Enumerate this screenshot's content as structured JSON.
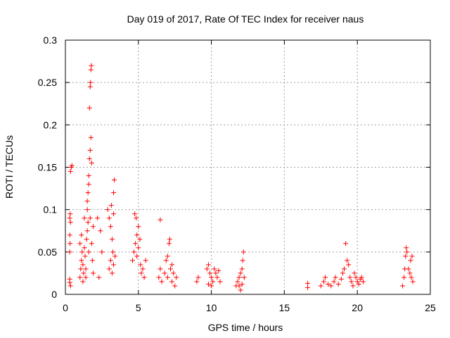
{
  "chart_data": {
    "type": "scatter",
    "title": "Day 019 of 2017, Rate Of TEC Index for receiver naus",
    "xlabel": "GPS time / hours",
    "ylabel": "ROTI / TECUs",
    "xlim": [
      0,
      25
    ],
    "ylim": [
      0,
      0.3
    ],
    "x_ticks": [
      "0",
      "5",
      "10",
      "15",
      "20",
      "25"
    ],
    "y_ticks": [
      "0",
      "0.05",
      "0.1",
      "0.15",
      "0.2",
      "0.25",
      "0.3"
    ],
    "grid": true,
    "marker": "+",
    "marker_color": "#ff0000",
    "series": [
      {
        "points": [
          [
            0.3,
            0.014
          ],
          [
            0.3,
            0.018
          ],
          [
            0.35,
            0.01
          ],
          [
            0.3,
            0.05
          ],
          [
            0.32,
            0.06
          ],
          [
            0.3,
            0.07
          ],
          [
            0.35,
            0.085
          ],
          [
            0.3,
            0.09
          ],
          [
            0.33,
            0.095
          ],
          [
            0.35,
            0.145
          ],
          [
            0.4,
            0.15
          ],
          [
            0.45,
            0.152
          ],
          [
            1.0,
            0.02
          ],
          [
            1.05,
            0.03
          ],
          [
            1.1,
            0.04
          ],
          [
            1.15,
            0.05
          ],
          [
            1.0,
            0.06
          ],
          [
            1.2,
            0.035
          ],
          [
            1.25,
            0.025
          ],
          [
            1.1,
            0.07
          ],
          [
            1.3,
            0.055
          ],
          [
            1.35,
            0.045
          ],
          [
            1.4,
            0.03
          ],
          [
            1.2,
            0.015
          ],
          [
            1.45,
            0.065
          ],
          [
            1.5,
            0.075
          ],
          [
            1.55,
            0.085
          ],
          [
            1.5,
            0.1
          ],
          [
            1.55,
            0.12
          ],
          [
            1.6,
            0.14
          ],
          [
            1.65,
            0.16
          ],
          [
            1.7,
            0.17
          ],
          [
            1.75,
            0.185
          ],
          [
            1.6,
            0.13
          ],
          [
            1.5,
            0.11
          ],
          [
            1.65,
            0.22
          ],
          [
            1.7,
            0.245
          ],
          [
            1.72,
            0.25
          ],
          [
            1.75,
            0.265
          ],
          [
            1.78,
            0.27
          ],
          [
            1.8,
            0.155
          ],
          [
            1.7,
            0.09
          ],
          [
            1.8,
            0.06
          ],
          [
            1.85,
            0.04
          ],
          [
            1.9,
            0.025
          ],
          [
            1.6,
            0.05
          ],
          [
            1.4,
            0.02
          ],
          [
            1.3,
            0.09
          ],
          [
            1.9,
            0.08
          ],
          [
            2.3,
            0.02
          ],
          [
            2.2,
            0.09
          ],
          [
            2.4,
            0.075
          ],
          [
            2.5,
            0.05
          ],
          [
            2.9,
            0.1
          ],
          [
            3.0,
            0.09
          ],
          [
            3.1,
            0.08
          ],
          [
            3.2,
            0.065
          ],
          [
            3.25,
            0.05
          ],
          [
            3.3,
            0.12
          ],
          [
            3.35,
            0.135
          ],
          [
            3.0,
            0.03
          ],
          [
            3.1,
            0.04
          ],
          [
            3.2,
            0.025
          ],
          [
            3.3,
            0.035
          ],
          [
            3.4,
            0.045
          ],
          [
            3.15,
            0.105
          ],
          [
            3.3,
            0.095
          ],
          [
            4.6,
            0.04
          ],
          [
            4.7,
            0.05
          ],
          [
            4.8,
            0.06
          ],
          [
            4.9,
            0.07
          ],
          [
            4.75,
            0.095
          ],
          [
            4.85,
            0.09
          ],
          [
            5.0,
            0.08
          ],
          [
            5.1,
            0.065
          ],
          [
            5.0,
            0.055
          ],
          [
            4.9,
            0.045
          ],
          [
            5.15,
            0.035
          ],
          [
            5.2,
            0.025
          ],
          [
            5.3,
            0.03
          ],
          [
            5.4,
            0.02
          ],
          [
            5.5,
            0.04
          ],
          [
            6.4,
            0.02
          ],
          [
            6.5,
            0.03
          ],
          [
            6.6,
            0.015
          ],
          [
            6.5,
            0.088
          ],
          [
            6.8,
            0.025
          ],
          [
            6.9,
            0.04
          ],
          [
            7.0,
            0.045
          ],
          [
            7.1,
            0.06
          ],
          [
            7.15,
            0.065
          ],
          [
            7.0,
            0.02
          ],
          [
            7.2,
            0.03
          ],
          [
            7.3,
            0.015
          ],
          [
            7.4,
            0.025
          ],
          [
            7.5,
            0.01
          ],
          [
            7.6,
            0.02
          ],
          [
            7.3,
            0.035
          ],
          [
            9.0,
            0.015
          ],
          [
            9.1,
            0.02
          ],
          [
            9.7,
            0.03
          ],
          [
            9.8,
            0.035
          ],
          [
            9.9,
            0.025
          ],
          [
            10.0,
            0.02
          ],
          [
            10.1,
            0.015
          ],
          [
            10.2,
            0.03
          ],
          [
            10.3,
            0.025
          ],
          [
            10.4,
            0.02
          ],
          [
            10.5,
            0.028
          ],
          [
            10.6,
            0.015
          ],
          [
            10.0,
            0.01
          ],
          [
            9.8,
            0.012
          ],
          [
            11.7,
            0.01
          ],
          [
            11.8,
            0.015
          ],
          [
            11.9,
            0.02
          ],
          [
            12.0,
            0.025
          ],
          [
            12.1,
            0.03
          ],
          [
            12.2,
            0.05
          ],
          [
            12.15,
            0.04
          ],
          [
            12.25,
            0.02
          ],
          [
            12.0,
            0.005
          ],
          [
            11.9,
            0.01
          ],
          [
            12.1,
            0.012
          ],
          [
            16.6,
            0.008
          ],
          [
            16.6,
            0.013
          ],
          [
            17.5,
            0.01
          ],
          [
            17.7,
            0.015
          ],
          [
            17.8,
            0.02
          ],
          [
            18.0,
            0.012
          ],
          [
            18.2,
            0.01
          ],
          [
            18.4,
            0.015
          ],
          [
            18.5,
            0.02
          ],
          [
            18.7,
            0.012
          ],
          [
            18.9,
            0.018
          ],
          [
            19.0,
            0.025
          ],
          [
            19.1,
            0.03
          ],
          [
            19.2,
            0.06
          ],
          [
            19.3,
            0.04
          ],
          [
            19.4,
            0.035
          ],
          [
            19.5,
            0.02
          ],
          [
            19.6,
            0.015
          ],
          [
            19.7,
            0.01
          ],
          [
            19.8,
            0.025
          ],
          [
            19.9,
            0.02
          ],
          [
            20.0,
            0.015
          ],
          [
            20.1,
            0.012
          ],
          [
            20.2,
            0.018
          ],
          [
            20.3,
            0.02
          ],
          [
            20.4,
            0.015
          ],
          [
            23.1,
            0.01
          ],
          [
            23.2,
            0.02
          ],
          [
            23.25,
            0.03
          ],
          [
            23.3,
            0.045
          ],
          [
            23.35,
            0.055
          ],
          [
            23.4,
            0.05
          ],
          [
            23.5,
            0.03
          ],
          [
            23.6,
            0.025
          ],
          [
            23.7,
            0.02
          ],
          [
            23.8,
            0.015
          ],
          [
            23.65,
            0.04
          ],
          [
            23.75,
            0.045
          ]
        ]
      }
    ]
  }
}
